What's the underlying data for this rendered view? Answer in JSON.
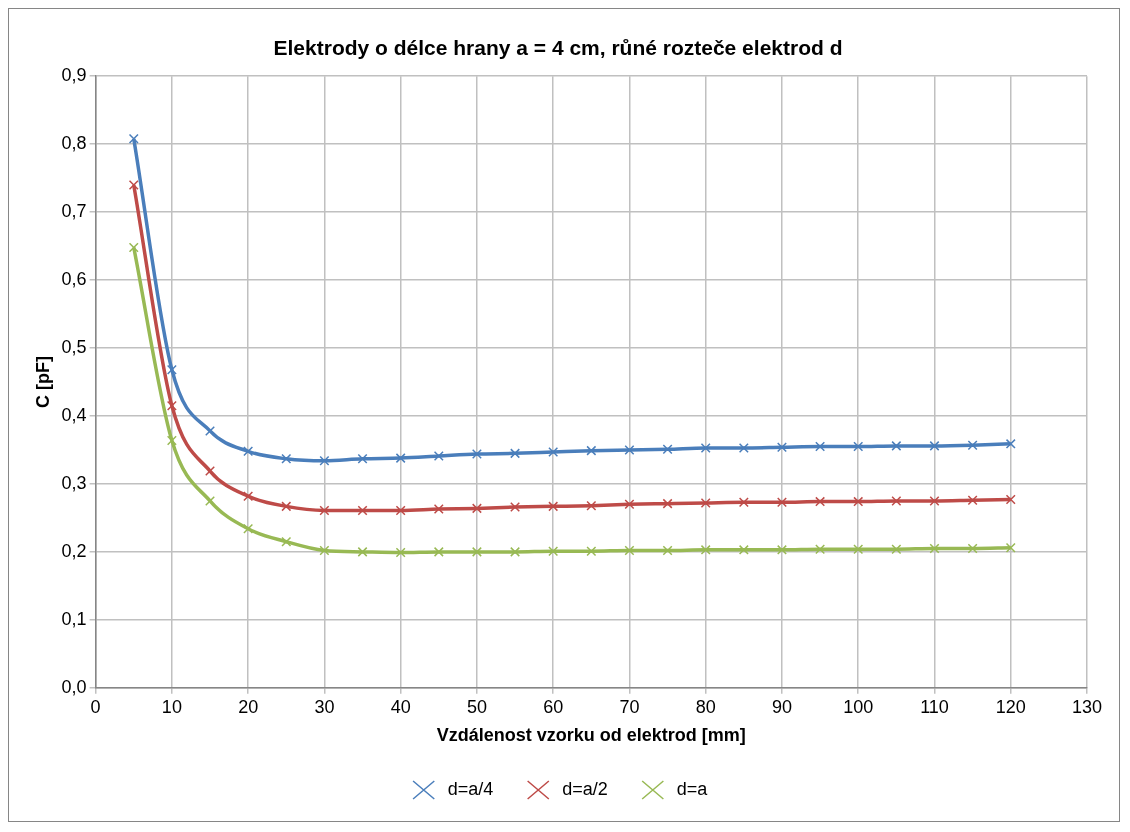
{
  "chart_data": {
    "type": "line",
    "title": "Elektrody o délce hrany a = 4 cm, růné rozteče elektrod d",
    "xlabel": "Vzdálenost vzorku od elektrod [mm]",
    "ylabel": "C [pF]",
    "x": [
      5,
      10,
      15,
      20,
      25,
      30,
      35,
      40,
      45,
      50,
      55,
      60,
      65,
      70,
      75,
      80,
      85,
      90,
      95,
      100,
      105,
      110,
      115,
      120
    ],
    "series": [
      {
        "name": "d=a/4",
        "color": "#4a7ebb",
        "values": [
          0.808,
          0.468,
          0.378,
          0.348,
          0.337,
          0.334,
          0.337,
          0.338,
          0.341,
          0.344,
          0.345,
          0.347,
          0.349,
          0.35,
          0.351,
          0.353,
          0.353,
          0.354,
          0.355,
          0.355,
          0.356,
          0.356,
          0.357,
          0.359
        ]
      },
      {
        "name": "d=a/2",
        "color": "#be4b48",
        "values": [
          0.74,
          0.415,
          0.319,
          0.282,
          0.267,
          0.261,
          0.261,
          0.261,
          0.263,
          0.264,
          0.266,
          0.267,
          0.268,
          0.27,
          0.271,
          0.272,
          0.273,
          0.273,
          0.274,
          0.274,
          0.275,
          0.275,
          0.276,
          0.277
        ]
      },
      {
        "name": "d=a",
        "color": "#98b954",
        "values": [
          0.648,
          0.364,
          0.275,
          0.234,
          0.215,
          0.202,
          0.2,
          0.199,
          0.2,
          0.2,
          0.2,
          0.201,
          0.201,
          0.202,
          0.202,
          0.203,
          0.203,
          0.203,
          0.204,
          0.204,
          0.204,
          0.205,
          0.205,
          0.206
        ]
      }
    ],
    "xlim": [
      0,
      130
    ],
    "xticks": [
      0,
      10,
      20,
      30,
      40,
      50,
      60,
      70,
      80,
      90,
      100,
      110,
      120,
      130
    ],
    "ylim": [
      0,
      0.9
    ],
    "yticks": [
      {
        "value": 0,
        "label": "0,0"
      },
      {
        "value": 0.1,
        "label": "0,1"
      },
      {
        "value": 0.2,
        "label": "0,2"
      },
      {
        "value": 0.3,
        "label": "0,3"
      },
      {
        "value": 0.4,
        "label": "0,4"
      },
      {
        "value": 0.5,
        "label": "0,5"
      },
      {
        "value": 0.6,
        "label": "0,6"
      },
      {
        "value": 0.7,
        "label": "0,7"
      },
      {
        "value": 0.8,
        "label": "0,8"
      },
      {
        "value": 0.9,
        "label": "0,9"
      }
    ],
    "grid": true,
    "legend": "bottom",
    "marker": "cross",
    "line_style": "solid"
  }
}
